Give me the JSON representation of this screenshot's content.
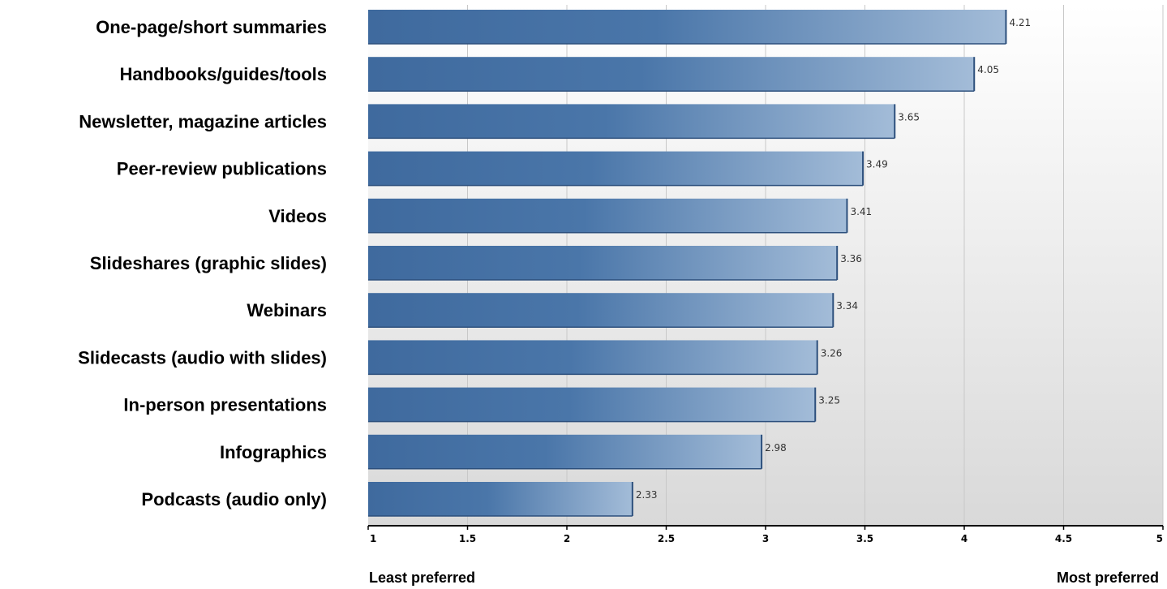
{
  "chart_data": {
    "type": "bar",
    "orientation": "horizontal",
    "categories": [
      "One-page/short summaries",
      "Handbooks/guides/tools",
      "Newsletter, magazine articles",
      "Peer-review publications",
      "Videos",
      "Slideshares (graphic slides)",
      "Webinars",
      "Slidecasts (audio with slides)",
      "In-person presentations",
      "Infographics",
      "Podcasts (audio only)"
    ],
    "values": [
      4.21,
      4.05,
      3.65,
      3.49,
      3.41,
      3.36,
      3.34,
      3.26,
      3.25,
      2.98,
      2.33
    ],
    "value_labels": [
      "4.21",
      "4.05",
      "3.65",
      "3.49",
      "3.41",
      "3.36",
      "3.34",
      "3.26",
      "3.25",
      "2.98",
      "2.33"
    ],
    "xlim": [
      1,
      5
    ],
    "x_ticks": [
      1,
      1.5,
      2,
      2.5,
      3,
      3.5,
      4,
      4.5,
      5
    ],
    "x_tick_labels": [
      "1",
      "1.5",
      "2",
      "2.5",
      "3",
      "3.5",
      "4",
      "4.5",
      "5"
    ],
    "xlabel_left": "Least preferred",
    "xlabel_right": "Most preferred",
    "grid": true,
    "colors": {
      "bar_dark": "#3f6a9e",
      "bar_light": "#a3bcd8",
      "bar_edge": "#2c4f7c",
      "plot_bg_top": "#ffffff",
      "plot_bg_bottom": "#d9d9d9",
      "grid": "#c8c8c8",
      "axis": "#000000"
    }
  }
}
